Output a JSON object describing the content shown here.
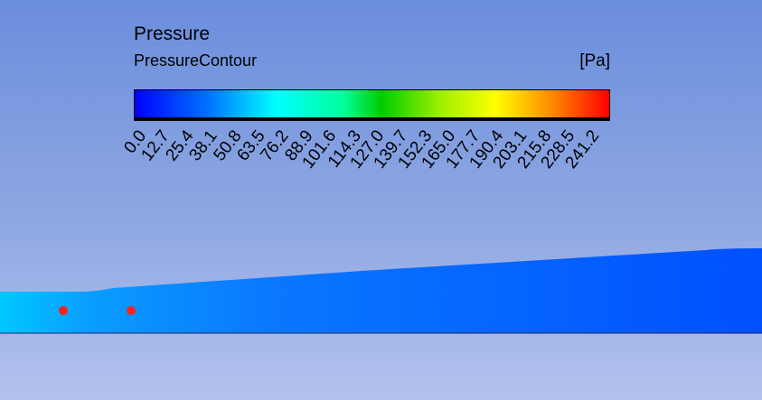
{
  "legend": {
    "title": "Pressure",
    "subtitle": "PressureContour",
    "unit": "[Pa]",
    "colors": [
      "#0000ff",
      "#00ffff",
      "#00cc00",
      "#ffff00",
      "#ff0000"
    ],
    "ticks": [
      "0.0",
      "12.7",
      "25.4",
      "38.1",
      "50.8",
      "63.5",
      "76.2",
      "88.9",
      "101.6",
      "114.3",
      "127.0",
      "139.7",
      "152.3",
      "165.0",
      "177.7",
      "190.4",
      "203.1",
      "215.8",
      "228.5",
      "241.2"
    ]
  },
  "domain": {
    "fill_colors": [
      "#00c8ff",
      "#0055ff"
    ],
    "probe_color": "#ff2020",
    "probe_count": 2
  }
}
